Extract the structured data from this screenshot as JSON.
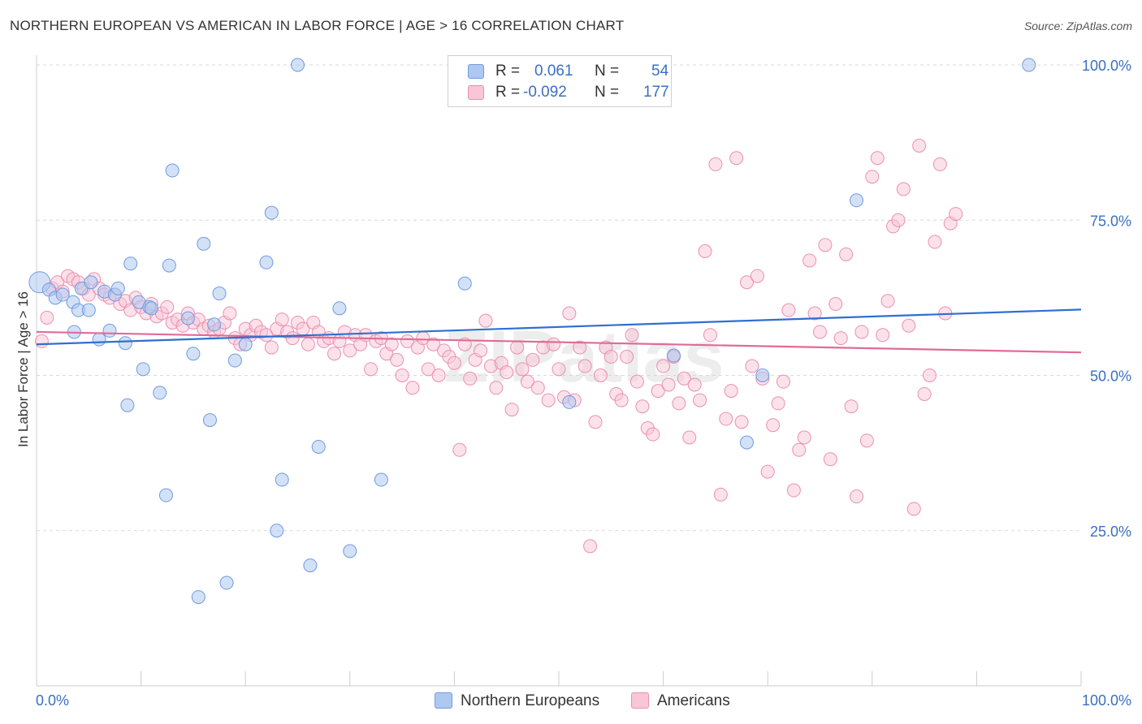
{
  "title": "NORTHERN EUROPEAN VS AMERICAN IN LABOR FORCE | AGE > 16 CORRELATION CHART",
  "source": "Source: ZipAtlas.com",
  "watermark": "ZIPatlas",
  "stats": {
    "northern": {
      "r_label": "R =",
      "r_value": "0.061",
      "n_label": "N =",
      "n_value": "54"
    },
    "americans": {
      "r_label": "R =",
      "r_value": "-0.092",
      "n_label": "N =",
      "n_value": "177"
    }
  },
  "legend": {
    "northern": "Northern Europeans",
    "americans": "Americans"
  },
  "colors": {
    "blue_fill": "#aec8f0",
    "blue_stroke": "#6f9be0",
    "blue_line": "#2e6fd1",
    "pink_fill": "#f8c6d6",
    "pink_stroke": "#ec8fb0",
    "pink_line": "#e06b98",
    "axis_label": "#3a6fc4"
  },
  "chart_data": {
    "type": "scatter",
    "ylabel": "In Labor Force | Age > 16",
    "xlabel": "",
    "xlim": [
      0,
      100
    ],
    "ylim": [
      0,
      100
    ],
    "x_tick_labels": [
      "0.0%",
      "100.0%"
    ],
    "y_tick_labels": [
      "25.0%",
      "50.0%",
      "75.0%",
      "100.0%"
    ],
    "y_ticks": [
      25,
      50,
      75,
      100
    ],
    "grid": "horizontal dashed",
    "legend_position": "bottom-center",
    "series": [
      {
        "name": "Northern Europeans",
        "trend": {
          "x": [
            0,
            100
          ],
          "y": [
            55.0,
            60.6
          ]
        },
        "points": [
          [
            0.3,
            65.0
          ],
          [
            1.2,
            63.8
          ],
          [
            1.8,
            62.5
          ],
          [
            2.5,
            63.0
          ],
          [
            3.5,
            61.8
          ],
          [
            3.6,
            57.0
          ],
          [
            4.0,
            60.5
          ],
          [
            4.3,
            64.0
          ],
          [
            5.2,
            65.0
          ],
          [
            5.0,
            60.5
          ],
          [
            6.0,
            55.8
          ],
          [
            6.5,
            63.5
          ],
          [
            7.0,
            57.2
          ],
          [
            7.5,
            63.0
          ],
          [
            7.8,
            64.0
          ],
          [
            8.5,
            55.2
          ],
          [
            8.7,
            45.2
          ],
          [
            9.0,
            68.0
          ],
          [
            9.8,
            61.8
          ],
          [
            10.2,
            51.0
          ],
          [
            10.8,
            61.0
          ],
          [
            11.0,
            60.8
          ],
          [
            11.8,
            47.2
          ],
          [
            12.4,
            30.7
          ],
          [
            12.7,
            67.7
          ],
          [
            13.0,
            83.0
          ],
          [
            14.5,
            59.2
          ],
          [
            15.0,
            53.5
          ],
          [
            15.5,
            14.3
          ],
          [
            16.0,
            71.2
          ],
          [
            16.6,
            42.8
          ],
          [
            17.0,
            58.2
          ],
          [
            17.5,
            63.2
          ],
          [
            18.2,
            16.6
          ],
          [
            19.0,
            52.4
          ],
          [
            20.0,
            55.0
          ],
          [
            22.0,
            68.2
          ],
          [
            22.5,
            76.2
          ],
          [
            23.0,
            25.0
          ],
          [
            23.5,
            33.2
          ],
          [
            25.0,
            100.0
          ],
          [
            26.2,
            19.4
          ],
          [
            27.0,
            38.5
          ],
          [
            29.0,
            60.8
          ],
          [
            30.0,
            21.7
          ],
          [
            33.0,
            33.2
          ],
          [
            41.0,
            64.8
          ],
          [
            51.0,
            45.7
          ],
          [
            61.0,
            53.2
          ],
          [
            68.0,
            39.2
          ],
          [
            69.5,
            50.0
          ],
          [
            78.5,
            78.2
          ],
          [
            95.0,
            100.0
          ]
        ]
      },
      {
        "name": "Americans",
        "trend": {
          "x": [
            0,
            100
          ],
          "y": [
            57.0,
            53.7
          ]
        },
        "points": [
          [
            0.5,
            55.5
          ],
          [
            1.0,
            59.3
          ],
          [
            1.5,
            64.0
          ],
          [
            2.0,
            65.0
          ],
          [
            2.5,
            63.5
          ],
          [
            3.0,
            66.0
          ],
          [
            3.5,
            65.5
          ],
          [
            4.0,
            65.0
          ],
          [
            4.5,
            64.0
          ],
          [
            5.0,
            63.0
          ],
          [
            5.5,
            65.5
          ],
          [
            6.0,
            64.0
          ],
          [
            6.5,
            63.0
          ],
          [
            7.0,
            62.5
          ],
          [
            7.5,
            63.0
          ],
          [
            8.0,
            61.5
          ],
          [
            8.5,
            62.0
          ],
          [
            9.0,
            60.5
          ],
          [
            9.5,
            62.5
          ],
          [
            10.0,
            61.0
          ],
          [
            10.5,
            60.0
          ],
          [
            11.0,
            61.5
          ],
          [
            11.5,
            59.5
          ],
          [
            12.0,
            60.0
          ],
          [
            12.5,
            61.0
          ],
          [
            13.0,
            58.5
          ],
          [
            13.5,
            59.0
          ],
          [
            14.0,
            58.0
          ],
          [
            14.5,
            60.0
          ],
          [
            15.0,
            58.5
          ],
          [
            15.5,
            59.0
          ],
          [
            16.0,
            57.5
          ],
          [
            16.5,
            58.0
          ],
          [
            17.0,
            57.0
          ],
          [
            17.5,
            57.5
          ],
          [
            18.0,
            58.5
          ],
          [
            18.5,
            60.0
          ],
          [
            19.0,
            56.0
          ],
          [
            19.5,
            55.0
          ],
          [
            20.0,
            57.5
          ],
          [
            20.5,
            56.5
          ],
          [
            21.0,
            58.0
          ],
          [
            21.5,
            57.0
          ],
          [
            22.0,
            56.5
          ],
          [
            22.5,
            54.5
          ],
          [
            23.0,
            57.5
          ],
          [
            23.5,
            59.0
          ],
          [
            24.0,
            57.0
          ],
          [
            24.5,
            56.0
          ],
          [
            25.0,
            58.5
          ],
          [
            25.5,
            57.5
          ],
          [
            26.0,
            55.0
          ],
          [
            26.5,
            58.5
          ],
          [
            27.0,
            57.0
          ],
          [
            27.5,
            55.5
          ],
          [
            28.0,
            56.0
          ],
          [
            28.5,
            53.5
          ],
          [
            29.0,
            55.5
          ],
          [
            29.5,
            57.0
          ],
          [
            30.0,
            54.0
          ],
          [
            30.5,
            56.5
          ],
          [
            31.0,
            55.0
          ],
          [
            31.5,
            56.5
          ],
          [
            32.0,
            51.0
          ],
          [
            32.5,
            55.5
          ],
          [
            33.0,
            56.0
          ],
          [
            33.5,
            53.5
          ],
          [
            34.0,
            55.0
          ],
          [
            34.5,
            52.5
          ],
          [
            35.0,
            50.0
          ],
          [
            35.5,
            55.5
          ],
          [
            36.0,
            48.0
          ],
          [
            36.5,
            54.5
          ],
          [
            37.0,
            56.0
          ],
          [
            37.5,
            51.0
          ],
          [
            38.0,
            55.0
          ],
          [
            38.5,
            50.0
          ],
          [
            39.0,
            54.0
          ],
          [
            39.5,
            53.0
          ],
          [
            40.0,
            52.0
          ],
          [
            40.5,
            38.0
          ],
          [
            41.0,
            55.0
          ],
          [
            41.5,
            49.5
          ],
          [
            42.0,
            52.5
          ],
          [
            42.5,
            54.0
          ],
          [
            43.0,
            58.8
          ],
          [
            43.5,
            51.5
          ],
          [
            44.0,
            48.0
          ],
          [
            44.5,
            52.0
          ],
          [
            45.0,
            50.5
          ],
          [
            45.5,
            44.5
          ],
          [
            46.0,
            54.5
          ],
          [
            46.5,
            51.0
          ],
          [
            47.0,
            49.0
          ],
          [
            47.5,
            52.5
          ],
          [
            48.0,
            48.0
          ],
          [
            48.5,
            54.5
          ],
          [
            49.0,
            46.0
          ],
          [
            49.5,
            55.0
          ],
          [
            50.0,
            51.0
          ],
          [
            50.5,
            46.5
          ],
          [
            51.0,
            60.0
          ],
          [
            51.5,
            46.0
          ],
          [
            52.0,
            54.5
          ],
          [
            52.5,
            51.5
          ],
          [
            53.0,
            22.5
          ],
          [
            53.5,
            42.5
          ],
          [
            54.0,
            50.0
          ],
          [
            54.5,
            54.5
          ],
          [
            55.0,
            53.0
          ],
          [
            55.5,
            47.0
          ],
          [
            56.0,
            46.0
          ],
          [
            56.5,
            53.0
          ],
          [
            57.0,
            56.5
          ],
          [
            57.5,
            49.0
          ],
          [
            58.0,
            45.0
          ],
          [
            58.5,
            41.5
          ],
          [
            59.0,
            40.5
          ],
          [
            59.5,
            47.5
          ],
          [
            60.0,
            51.5
          ],
          [
            60.5,
            48.5
          ],
          [
            61.0,
            53.0
          ],
          [
            61.5,
            45.5
          ],
          [
            62.0,
            49.5
          ],
          [
            62.5,
            40.0
          ],
          [
            63.0,
            48.5
          ],
          [
            63.5,
            46.0
          ],
          [
            64.0,
            70.0
          ],
          [
            64.5,
            56.5
          ],
          [
            65.0,
            84.0
          ],
          [
            65.5,
            30.8
          ],
          [
            66.0,
            43.0
          ],
          [
            66.5,
            47.5
          ],
          [
            67.0,
            85.0
          ],
          [
            67.5,
            42.5
          ],
          [
            68.0,
            65.0
          ],
          [
            68.5,
            51.5
          ],
          [
            69.0,
            66.0
          ],
          [
            69.5,
            49.5
          ],
          [
            70.0,
            34.5
          ],
          [
            70.5,
            42.0
          ],
          [
            71.0,
            45.5
          ],
          [
            71.5,
            49.0
          ],
          [
            72.0,
            60.5
          ],
          [
            72.5,
            31.5
          ],
          [
            73.0,
            38.0
          ],
          [
            73.5,
            40.0
          ],
          [
            74.0,
            68.5
          ],
          [
            74.5,
            60.0
          ],
          [
            75.0,
            57.0
          ],
          [
            75.5,
            71.0
          ],
          [
            76.0,
            36.5
          ],
          [
            76.5,
            61.5
          ],
          [
            77.0,
            56.0
          ],
          [
            77.5,
            69.5
          ],
          [
            78.0,
            45.0
          ],
          [
            78.5,
            30.5
          ],
          [
            79.0,
            57.0
          ],
          [
            79.5,
            39.5
          ],
          [
            80.0,
            82.0
          ],
          [
            80.5,
            85.0
          ],
          [
            81.0,
            56.5
          ],
          [
            81.5,
            62.0
          ],
          [
            82.0,
            74.0
          ],
          [
            82.5,
            75.0
          ],
          [
            83.0,
            80.0
          ],
          [
            83.5,
            58.0
          ],
          [
            84.0,
            28.5
          ],
          [
            84.5,
            87.0
          ],
          [
            85.0,
            47.0
          ],
          [
            85.5,
            50.0
          ],
          [
            86.0,
            71.5
          ],
          [
            86.5,
            84.0
          ],
          [
            87.0,
            60.0
          ],
          [
            87.5,
            74.5
          ],
          [
            88.0,
            76.0
          ]
        ]
      }
    ]
  }
}
